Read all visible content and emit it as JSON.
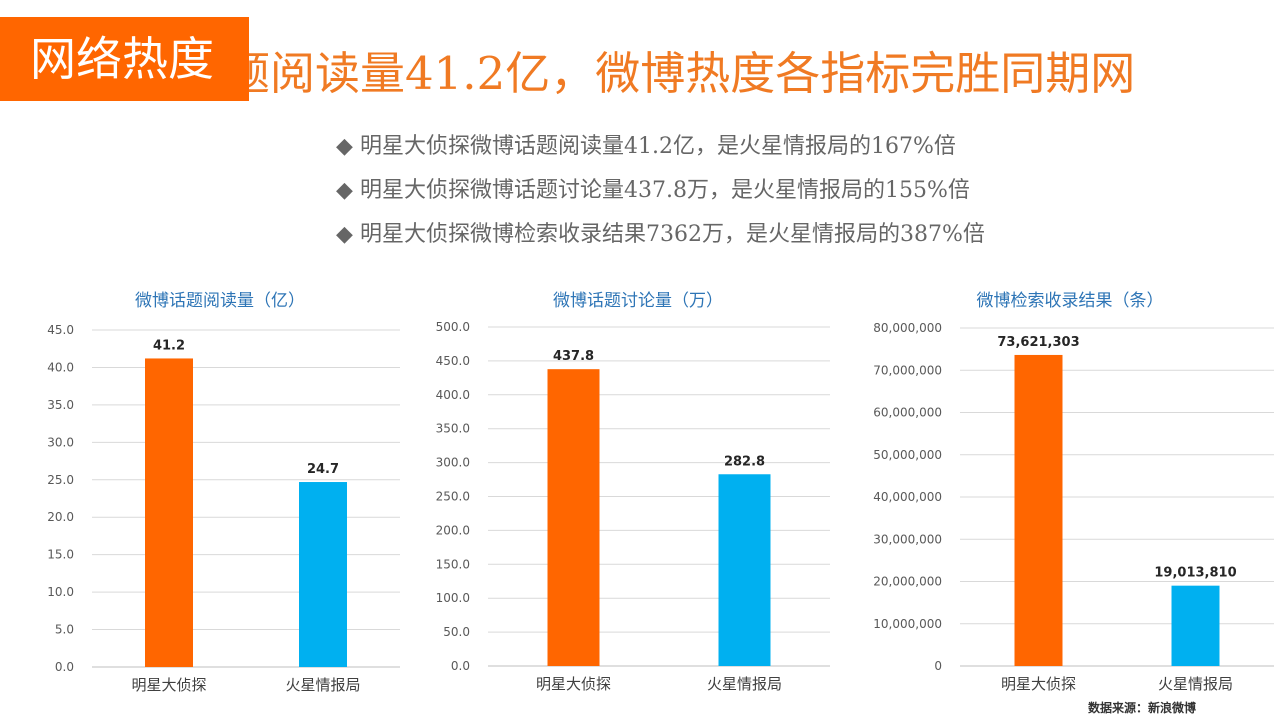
{
  "header": {
    "section_tag": "网络热度",
    "headline": "微博话题阅读量41.2亿，微博热度各指标完胜同期网"
  },
  "key_points": [
    "明星大侦探微博话题阅读量41.2亿，是火星情报局的167%倍",
    "明星大侦探微博话题讨论量437.8万，是火星情报局的155%倍",
    "明星大侦探微博检索收录结果7362万，是火星情报局的387%倍"
  ],
  "colors": {
    "accent": "#ff6600",
    "secondary": "#00b0f0",
    "title": "#2e75b6"
  },
  "chart_data": [
    {
      "type": "bar",
      "title": "微博话题阅读量（亿）",
      "categories": [
        "明星大侦探",
        "火星情报局"
      ],
      "values": [
        41.2,
        24.7
      ],
      "value_labels": [
        "41.2",
        "24.7"
      ],
      "ylim": [
        0,
        45
      ],
      "yticks": [
        "0.0",
        "5.0",
        "10.0",
        "15.0",
        "20.0",
        "25.0",
        "30.0",
        "35.0",
        "40.0",
        "45.0"
      ],
      "grid": true,
      "bar_colors": [
        "#ff6600",
        "#00b0f0"
      ]
    },
    {
      "type": "bar",
      "title": "微博话题讨论量（万）",
      "categories": [
        "明星大侦探",
        "火星情报局"
      ],
      "values": [
        437.8,
        282.8
      ],
      "value_labels": [
        "437.8",
        "282.8"
      ],
      "ylim": [
        0,
        500
      ],
      "yticks": [
        "0.0",
        "50.0",
        "100.0",
        "150.0",
        "200.0",
        "250.0",
        "300.0",
        "350.0",
        "400.0",
        "450.0",
        "500.0"
      ],
      "grid": true,
      "bar_colors": [
        "#ff6600",
        "#00b0f0"
      ]
    },
    {
      "type": "bar",
      "title": "微博检索收录结果（条）",
      "categories": [
        "明星大侦探",
        "火星情报局"
      ],
      "values": [
        73621303,
        19013810
      ],
      "value_labels": [
        "73,621,303",
        "19,013,810"
      ],
      "ylim": [
        0,
        80000000
      ],
      "yticks": [
        "0",
        "10,000,000",
        "20,000,000",
        "30,000,000",
        "40,000,000",
        "50,000,000",
        "60,000,000",
        "70,000,000",
        "80,000,000"
      ],
      "grid": true,
      "bar_colors": [
        "#ff6600",
        "#00b0f0"
      ]
    }
  ],
  "footer": {
    "source": "数据来源：新浪微博"
  }
}
